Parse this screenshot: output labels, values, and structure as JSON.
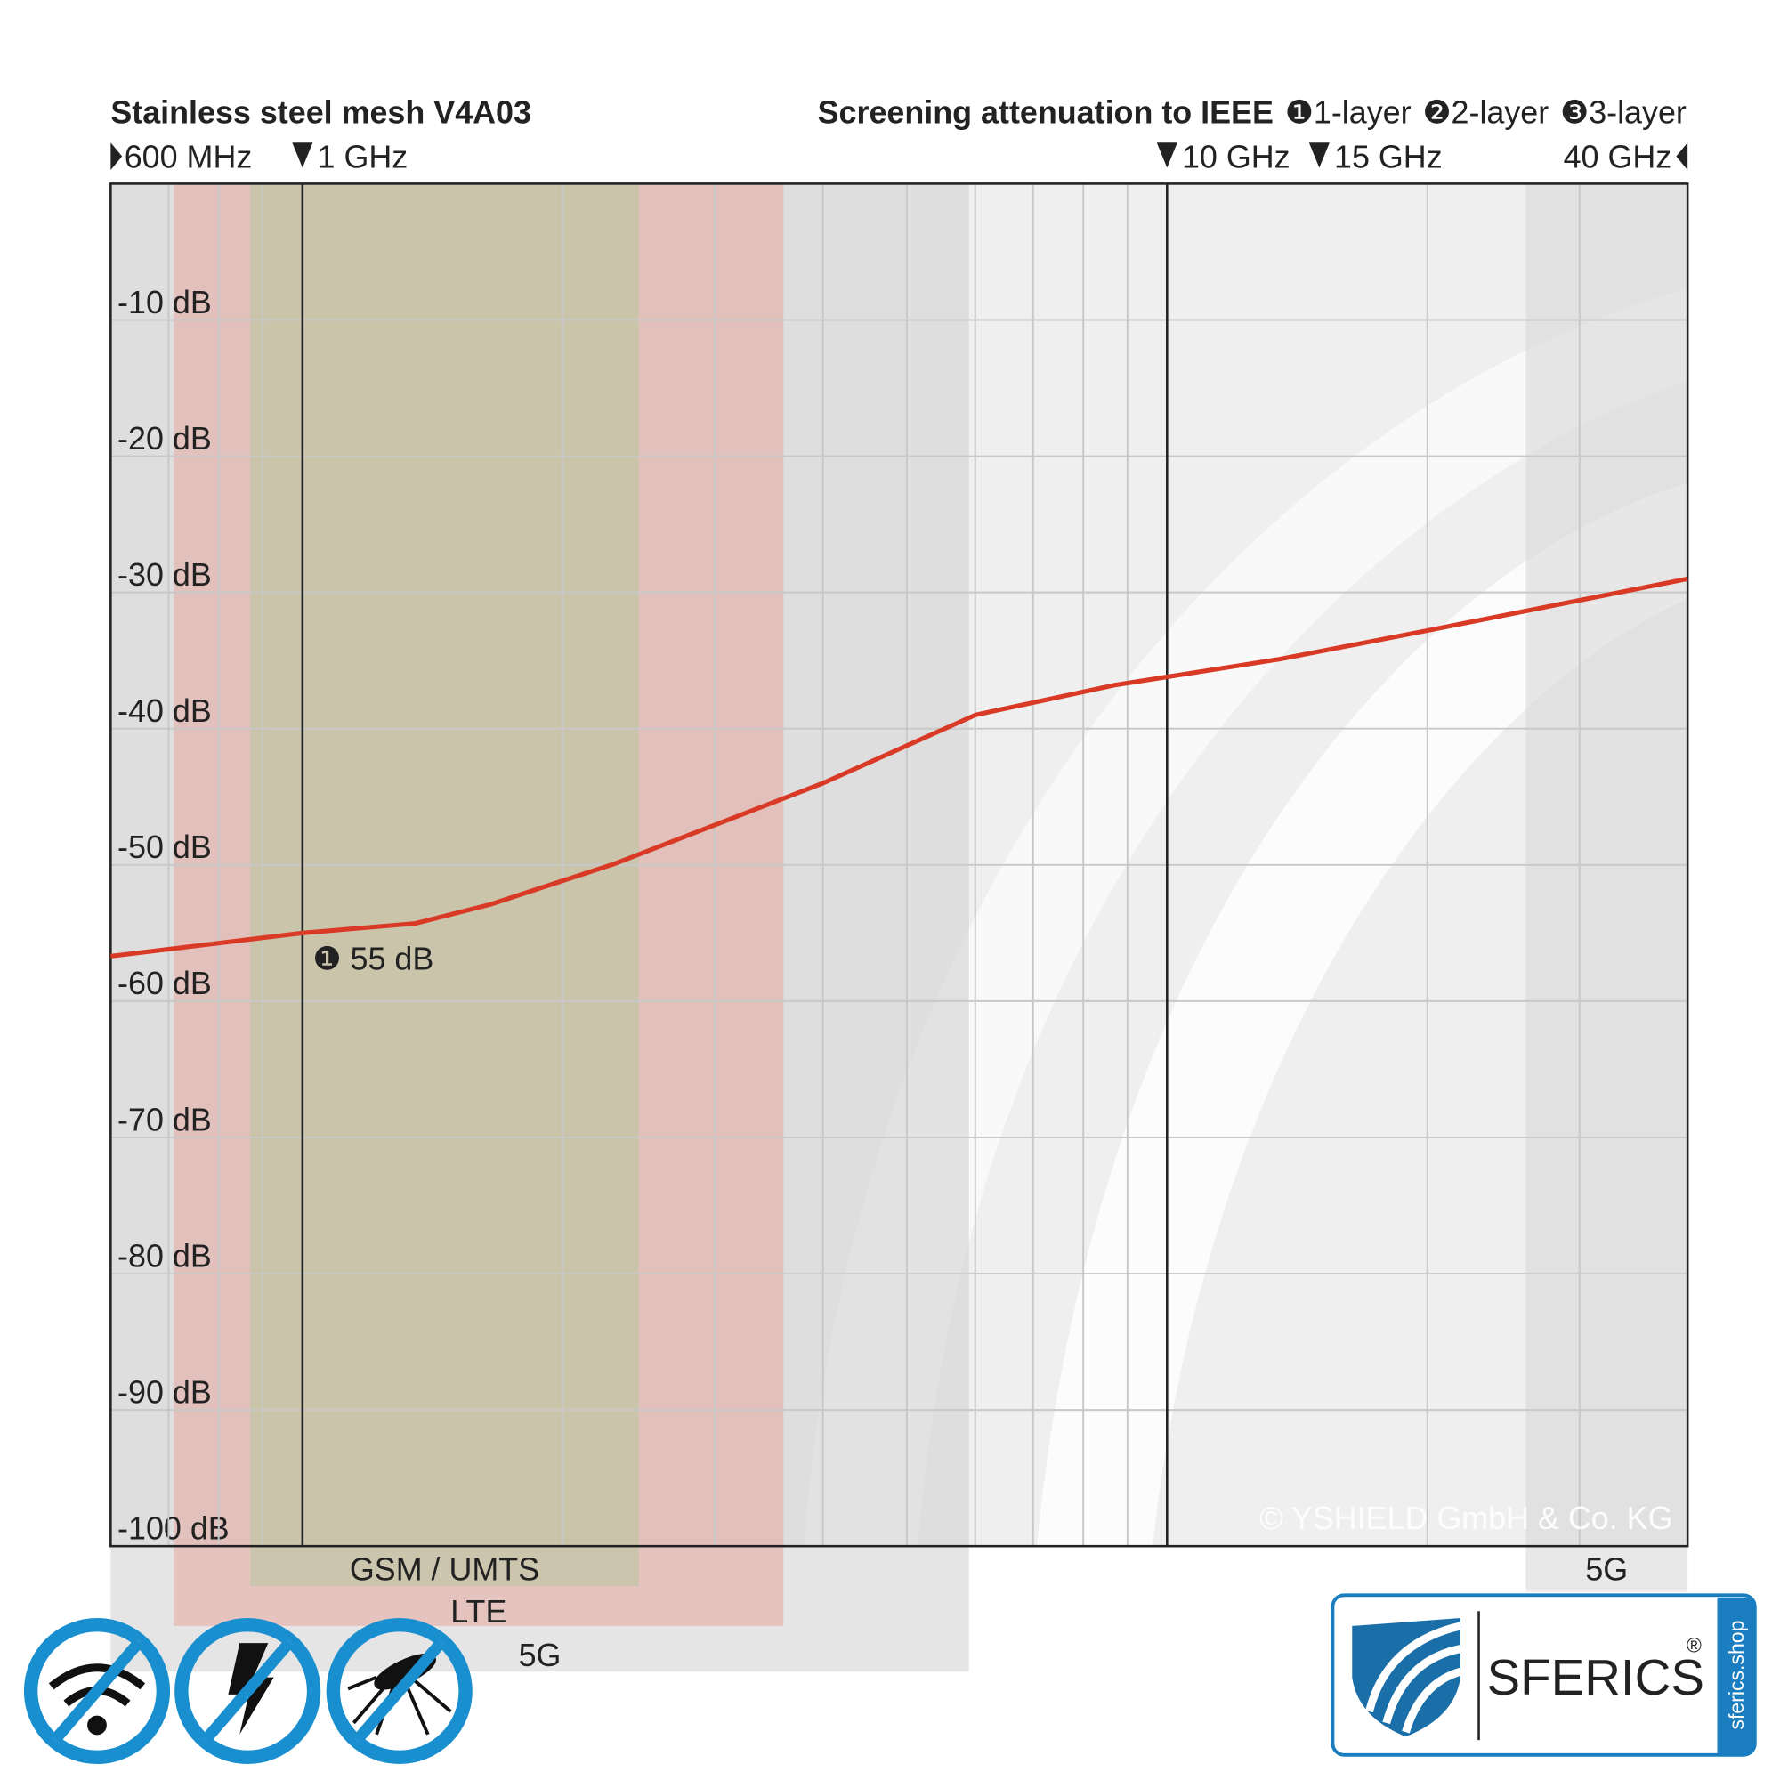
{
  "chart_data": {
    "type": "line",
    "title": "Stainless steel mesh V4A03",
    "subtitle": "Screening attenuation to IEEE",
    "log_x": true,
    "grid": true,
    "xlim": [
      0.6,
      40
    ],
    "xticks": [
      {
        "value": 0.6,
        "label": "600 MHz"
      },
      {
        "value": 1,
        "label": "1 GHz"
      },
      {
        "value": 10,
        "label": "10 GHz"
      },
      {
        "value": 15,
        "label": "15 GHz"
      },
      {
        "value": 40,
        "label": "40 GHz"
      }
    ],
    "xminorticks": [
      0.7,
      0.8,
      0.9,
      2,
      3,
      4,
      5,
      6,
      7,
      8,
      9,
      20,
      30
    ],
    "xmajor": [
      1,
      10
    ],
    "ylim": [
      -100,
      0
    ],
    "yticks": [
      {
        "value": -10,
        "label": "-10 dB"
      },
      {
        "value": -20,
        "label": "-20 dB"
      },
      {
        "value": -30,
        "label": "-30 dB"
      },
      {
        "value": -40,
        "label": "-40 dB"
      },
      {
        "value": -50,
        "label": "-50 dB"
      },
      {
        "value": -60,
        "label": "-60 dB"
      },
      {
        "value": -70,
        "label": "-70 dB"
      },
      {
        "value": -80,
        "label": "-80 dB"
      },
      {
        "value": -90,
        "label": "-90 dB"
      },
      {
        "value": -100,
        "label": "-100 dB"
      }
    ],
    "x": [
      0.6,
      1,
      1.35,
      1.65,
      2.3,
      4,
      6,
      8.7,
      10,
      13.5,
      20,
      40
    ],
    "series": [
      {
        "name": "❶1-layer",
        "color": "#d93a26",
        "values": [
          -56.7,
          -55,
          -54.3,
          -52.9,
          -49.9,
          -44,
          -39,
          -36.8,
          -36.2,
          -34.9,
          -32.8,
          -29
        ]
      }
    ],
    "other_layers": [
      "❷2-layer",
      "❸3-layer"
    ],
    "annotation": {
      "text": "❶ 55 dB",
      "x": 1,
      "y": -55
    },
    "bands": [
      {
        "label": "5G",
        "from": 0.6,
        "to": 5.9,
        "color": "#cfcfcf"
      },
      {
        "label": "LTE",
        "from": 0.71,
        "to": 3.6,
        "color": "#e6aaa3"
      },
      {
        "label": "GSM / UMTS",
        "from": 0.87,
        "to": 2.45,
        "color": "#b7c69c"
      },
      {
        "label": "5G",
        "from": 26,
        "to": 40,
        "color": "#d6d6d6"
      }
    ],
    "copyright": "© YSHIELD GmbH & Co. KG"
  },
  "logo": {
    "brand": "SFERICS",
    "mark": "®",
    "url": "sferics.shop"
  }
}
